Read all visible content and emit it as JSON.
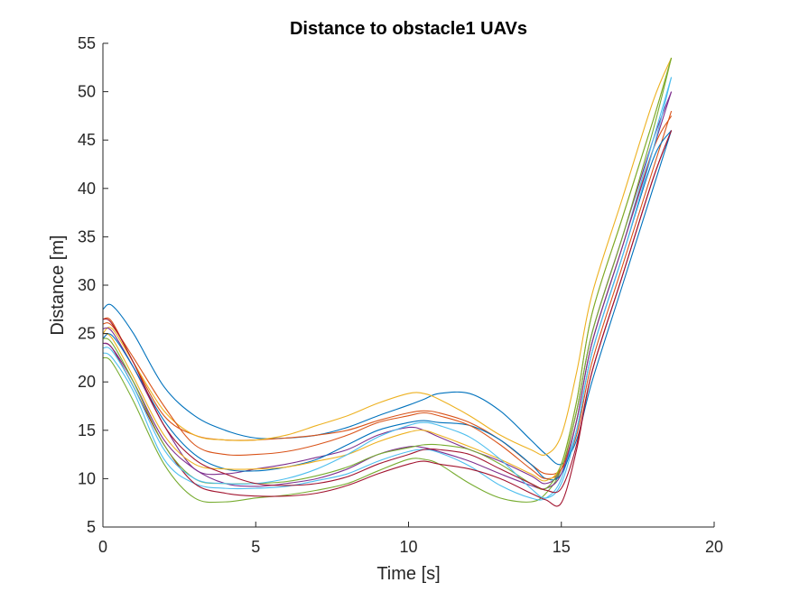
{
  "chart_data": {
    "type": "line",
    "title": "Distance to obstacle1 UAVs",
    "xlabel": "Time [s]",
    "ylabel": "Distance [m]",
    "xlim": [
      0,
      20
    ],
    "ylim": [
      5,
      55
    ],
    "xticks": [
      0,
      5,
      10,
      15,
      20
    ],
    "yticks": [
      5,
      10,
      15,
      20,
      25,
      30,
      35,
      40,
      45,
      50,
      55
    ],
    "grid": false,
    "legend": "none",
    "x": [
      0,
      0.3,
      1,
      2,
      3,
      4,
      5,
      6,
      7,
      8,
      9,
      10,
      10.5,
      11,
      12,
      13,
      14,
      14.5,
      15,
      15.5,
      16,
      17,
      18,
      18.6
    ],
    "series": [
      {
        "color": "#0072BD",
        "values": [
          27.5,
          27.9,
          25.0,
          19.5,
          16.5,
          15.0,
          14.2,
          14.2,
          14.5,
          15.3,
          16.5,
          17.6,
          18.2,
          18.8,
          18.8,
          17.0,
          14.0,
          12.5,
          11.5,
          14.0,
          20.0,
          30.0,
          40.0,
          46.0
        ]
      },
      {
        "color": "#D95319",
        "values": [
          26.5,
          26.2,
          22.0,
          16.5,
          14.5,
          14.0,
          14.0,
          14.2,
          14.5,
          15.0,
          16.0,
          16.8,
          17.0,
          16.8,
          15.8,
          14.0,
          11.5,
          10.5,
          11.0,
          14.5,
          22.0,
          32.0,
          42.0,
          48.0
        ]
      },
      {
        "color": "#EDB120",
        "values": [
          25.0,
          25.5,
          22.0,
          17.0,
          14.5,
          14.0,
          14.0,
          14.5,
          15.5,
          16.5,
          17.8,
          18.8,
          18.8,
          18.2,
          16.5,
          14.5,
          13.0,
          12.5,
          14.5,
          21.0,
          29.0,
          39.0,
          49.0,
          53.5
        ]
      },
      {
        "color": "#7E2F8E",
        "values": [
          25.5,
          25.2,
          21.5,
          15.5,
          11.0,
          10.5,
          11.0,
          11.5,
          12.2,
          13.0,
          14.5,
          15.3,
          15.0,
          14.3,
          13.0,
          11.8,
          10.3,
          9.5,
          11.0,
          17.0,
          25.0,
          35.0,
          45.0,
          50.0
        ]
      },
      {
        "color": "#77AC30",
        "values": [
          22.5,
          22.0,
          18.0,
          11.5,
          8.0,
          7.6,
          8.0,
          8.3,
          8.8,
          9.5,
          10.8,
          12.0,
          12.0,
          11.5,
          9.5,
          8.0,
          7.6,
          8.5,
          11.0,
          17.0,
          25.0,
          35.0,
          46.0,
          53.5
        ]
      },
      {
        "color": "#4DBEEE",
        "values": [
          23.0,
          22.5,
          19.0,
          12.0,
          9.5,
          9.0,
          9.0,
          9.2,
          9.8,
          10.5,
          11.8,
          12.8,
          13.0,
          12.7,
          11.3,
          9.3,
          8.0,
          8.0,
          10.0,
          16.0,
          24.0,
          34.0,
          45.0,
          51.5
        ]
      },
      {
        "color": "#A2142F",
        "values": [
          24.0,
          23.5,
          19.5,
          13.5,
          9.5,
          8.5,
          8.2,
          8.2,
          8.5,
          9.3,
          10.5,
          11.5,
          11.8,
          11.5,
          11.0,
          10.0,
          8.5,
          7.8,
          7.5,
          13.0,
          21.0,
          31.0,
          41.0,
          46.0
        ]
      },
      {
        "color": "#0072BD",
        "values": [
          24.5,
          24.8,
          21.5,
          16.0,
          12.5,
          11.0,
          10.8,
          11.2,
          12.0,
          13.5,
          15.0,
          15.8,
          16.0,
          15.8,
          15.5,
          14.0,
          11.5,
          10.0,
          10.5,
          15.0,
          23.0,
          33.0,
          43.0,
          46.0
        ]
      },
      {
        "color": "#D95319",
        "values": [
          26.0,
          25.8,
          22.5,
          17.5,
          13.5,
          12.5,
          12.5,
          12.8,
          13.5,
          14.5,
          15.8,
          16.5,
          16.8,
          16.5,
          15.5,
          13.5,
          11.0,
          10.0,
          11.0,
          16.0,
          24.0,
          34.0,
          44.0,
          47.5
        ]
      },
      {
        "color": "#EDB120",
        "values": [
          25.0,
          24.5,
          20.5,
          14.5,
          11.5,
          11.0,
          11.0,
          11.2,
          11.8,
          12.5,
          13.8,
          14.8,
          15.0,
          14.5,
          13.3,
          12.0,
          10.5,
          9.8,
          11.5,
          18.0,
          27.0,
          37.0,
          47.0,
          53.5
        ]
      },
      {
        "color": "#7E2F8E",
        "values": [
          24.0,
          23.5,
          20.0,
          14.0,
          11.0,
          9.5,
          9.2,
          9.5,
          10.0,
          11.0,
          12.5,
          13.3,
          13.2,
          12.8,
          11.8,
          10.5,
          9.3,
          9.0,
          10.5,
          16.0,
          24.0,
          34.0,
          44.0,
          50.0
        ]
      },
      {
        "color": "#77AC30",
        "values": [
          24.5,
          24.0,
          20.0,
          13.5,
          10.0,
          9.5,
          9.5,
          9.7,
          10.3,
          11.2,
          12.5,
          13.2,
          13.5,
          13.5,
          13.0,
          11.5,
          9.5,
          9.0,
          11.5,
          18.0,
          27.0,
          37.0,
          47.0,
          53.5
        ]
      },
      {
        "color": "#4DBEEE",
        "values": [
          23.5,
          23.2,
          19.5,
          13.0,
          10.0,
          9.5,
          9.5,
          10.0,
          11.0,
          12.5,
          14.3,
          15.5,
          15.8,
          15.5,
          14.3,
          12.0,
          9.0,
          8.0,
          9.5,
          15.0,
          23.0,
          33.0,
          44.0,
          51.5
        ]
      },
      {
        "color": "#A2142F",
        "values": [
          26.5,
          26.0,
          22.0,
          15.5,
          12.0,
          10.5,
          9.5,
          9.3,
          9.5,
          10.2,
          11.5,
          12.5,
          13.0,
          13.0,
          12.5,
          11.0,
          9.5,
          8.8,
          9.0,
          13.5,
          21.0,
          31.0,
          41.0,
          46.0
        ]
      }
    ]
  }
}
